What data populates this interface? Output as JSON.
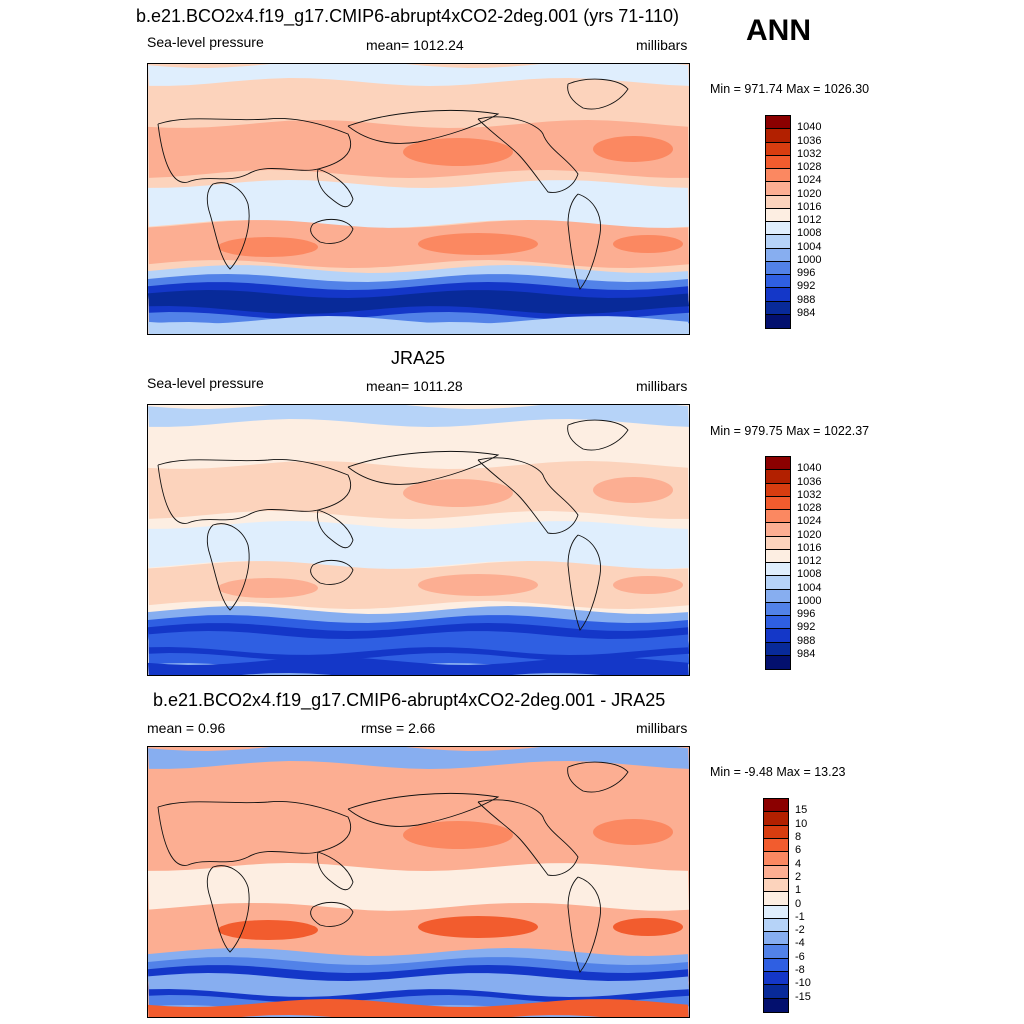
{
  "season": "ANN",
  "panels": [
    {
      "title": "b.e21.BCO2x4.f19_g17.CMIP6-abrupt4xCO2-2deg.001 (yrs 71-110)",
      "left_label": "Sea-level pressure",
      "center_label": "mean= 1012.24",
      "units": "millibars",
      "minmax": "Min = 971.74 Max = 1026.30",
      "colorbar": {
        "labels": [
          "1040",
          "1036",
          "1032",
          "1028",
          "1024",
          "1020",
          "1016",
          "1012",
          "1008",
          "1004",
          "1000",
          "996",
          "992",
          "988",
          "984"
        ],
        "colors": [
          "#8b0000",
          "#b22000",
          "#d83d10",
          "#f25c2e",
          "#fb8861",
          "#fcae92",
          "#fcd3bc",
          "#fdeee2",
          "#dfeefd",
          "#b6d3f8",
          "#87aef0",
          "#5282e8",
          "#2f5fe2",
          "#1437c8",
          "#082a99",
          "#03106e"
        ]
      },
      "map_colors": {
        "north": "#fcd3bc",
        "arctic": "#dfeefd",
        "subtrop": "#fcae92",
        "high": "#fb8861",
        "trop": "#dfeefd",
        "south_mid": "#fcae92",
        "south_high": "#fb8861",
        "trough": [
          "#b6d3f8",
          "#5282e8",
          "#1437c8",
          "#082a99"
        ],
        "antarctic": "#b6d3f8"
      }
    },
    {
      "title": "JRA25",
      "left_label": "Sea-level pressure",
      "center_label": "mean= 1011.28",
      "units": "millibars",
      "minmax": "Min = 979.75 Max = 1022.37",
      "colorbar": {
        "labels": [
          "1040",
          "1036",
          "1032",
          "1028",
          "1024",
          "1020",
          "1016",
          "1012",
          "1008",
          "1004",
          "1000",
          "996",
          "992",
          "988",
          "984"
        ],
        "colors": [
          "#8b0000",
          "#b22000",
          "#d83d10",
          "#f25c2e",
          "#fb8861",
          "#fcae92",
          "#fcd3bc",
          "#fdeee2",
          "#dfeefd",
          "#b6d3f8",
          "#87aef0",
          "#5282e8",
          "#2f5fe2",
          "#1437c8",
          "#082a99",
          "#03106e"
        ]
      },
      "map_colors": {
        "north": "#fdeee2",
        "arctic": "#b6d3f8",
        "subtrop": "#fcd3bc",
        "high": "#fcae92",
        "trop": "#dfeefd",
        "south_mid": "#fcd3bc",
        "south_high": "#fcae92",
        "trough": [
          "#87aef0",
          "#2f5fe2",
          "#1437c8",
          "#2f5fe2"
        ],
        "antarctic": "#1437c8"
      }
    },
    {
      "title": "b.e21.BCO2x4.f19_g17.CMIP6-abrupt4xCO2-2deg.001 - JRA25",
      "left_label": "mean =   0.96",
      "center_label": "rmse =   2.66",
      "units": "millibars",
      "minmax": "Min =  -9.48 Max =  13.23",
      "colorbar": {
        "labels": [
          "15",
          "10",
          "8",
          "6",
          "4",
          "2",
          "1",
          "0",
          "-1",
          "-2",
          "-4",
          "-6",
          "-8",
          "-10",
          "-15"
        ],
        "colors": [
          "#8b0000",
          "#b22000",
          "#d83d10",
          "#f25c2e",
          "#fb8861",
          "#fcae92",
          "#fcd3bc",
          "#fdeee2",
          "#dfeefd",
          "#b6d3f8",
          "#87aef0",
          "#5282e8",
          "#2f5fe2",
          "#1437c8",
          "#082a99",
          "#03106e"
        ]
      },
      "map_colors": {
        "north": "#fcae92",
        "arctic": "#87aef0",
        "subtrop": "#fcae92",
        "high": "#fb8861",
        "trop": "#fdeee2",
        "south_mid": "#fcae92",
        "south_high": "#f25c2e",
        "trough": [
          "#87aef0",
          "#5282e8",
          "#1437c8",
          "#87aef0"
        ],
        "antarctic": "#f25c2e"
      }
    }
  ]
}
